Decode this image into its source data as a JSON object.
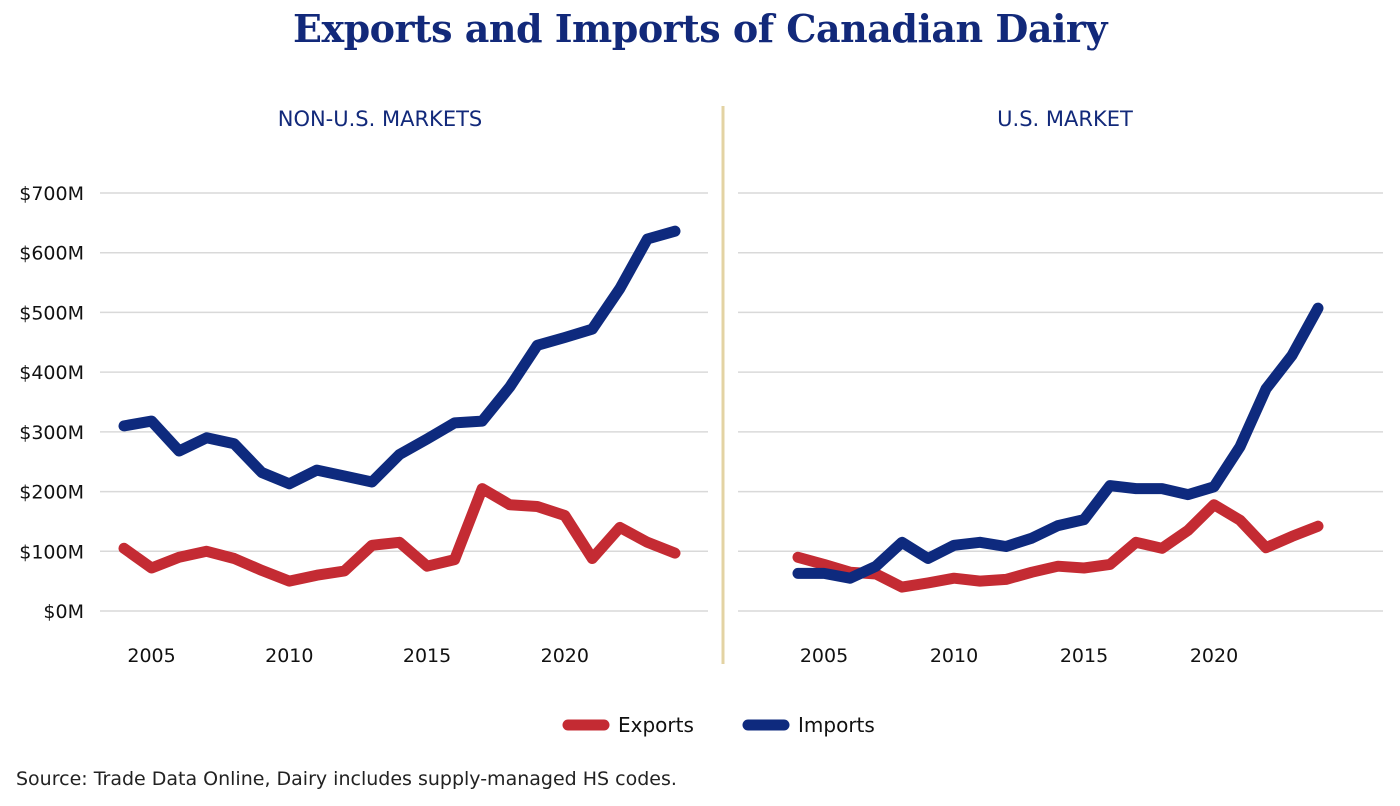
{
  "title": "Exports and Imports of Canadian Dairy",
  "source": "Source: Trade Data Online, Dairy includes supply-managed HS codes.",
  "colors": {
    "exports": "#c42b33",
    "imports": "#0e2a7e",
    "title": "#12297a",
    "divider": "#e3d3a3",
    "grid": "#d9d9d9"
  },
  "chart_data": [
    {
      "type": "line",
      "title": "NON-U.S. MARKETS",
      "x": [
        2004,
        2005,
        2006,
        2007,
        2008,
        2009,
        2010,
        2011,
        2012,
        2013,
        2014,
        2015,
        2016,
        2017,
        2018,
        2019,
        2020,
        2021,
        2022,
        2023,
        2024
      ],
      "xticks": [
        2005,
        2010,
        2015,
        2020
      ],
      "xtick_labels": [
        "2005",
        "2010",
        "2015",
        "2020"
      ],
      "yticks": [
        0,
        100,
        200,
        300,
        400,
        500,
        600,
        700
      ],
      "ytick_labels": [
        "$0M",
        "$100M",
        "$200M",
        "$300M",
        "$400M",
        "$500M",
        "$600M",
        "$700M"
      ],
      "ylim": [
        0,
        700
      ],
      "grid": true,
      "series": [
        {
          "name": "Exports",
          "values": [
            105,
            72,
            90,
            100,
            88,
            68,
            50,
            60,
            67,
            110,
            115,
            75,
            86,
            205,
            178,
            175,
            160,
            88,
            140,
            115,
            97
          ]
        },
        {
          "name": "Imports",
          "values": [
            310,
            318,
            268,
            290,
            280,
            232,
            213,
            236,
            226,
            216,
            262,
            288,
            315,
            318,
            375,
            445,
            458,
            472,
            540,
            623,
            636
          ]
        }
      ]
    },
    {
      "type": "line",
      "title": "U.S. MARKET",
      "x": [
        2004,
        2005,
        2006,
        2007,
        2008,
        2009,
        2010,
        2011,
        2012,
        2013,
        2014,
        2015,
        2016,
        2017,
        2018,
        2019,
        2020,
        2021,
        2022,
        2023,
        2024
      ],
      "xticks": [
        2005,
        2010,
        2015,
        2020
      ],
      "xtick_labels": [
        "2005",
        "2010",
        "2015",
        "2020"
      ],
      "yticks": [
        0,
        100,
        200,
        300,
        400,
        500,
        600,
        700
      ],
      "ylim": [
        0,
        700
      ],
      "grid": true,
      "series": [
        {
          "name": "Exports",
          "values": [
            90,
            78,
            65,
            62,
            40,
            47,
            55,
            50,
            53,
            65,
            75,
            72,
            78,
            115,
            105,
            135,
            178,
            152,
            106,
            125,
            142
          ]
        },
        {
          "name": "Imports",
          "values": [
            63,
            63,
            55,
            75,
            115,
            88,
            110,
            115,
            108,
            122,
            143,
            153,
            210,
            205,
            205,
            195,
            208,
            275,
            372,
            428,
            507
          ]
        }
      ]
    }
  ],
  "legend": [
    {
      "label": "Exports",
      "color": "#c42b33"
    },
    {
      "label": "Imports",
      "color": "#0e2a7e"
    }
  ]
}
